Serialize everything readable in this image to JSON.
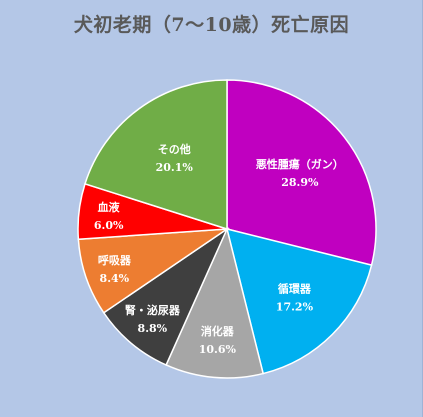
{
  "chart_data": {
    "type": "pie",
    "title": "犬初老期（7～10歳）死亡原因",
    "slices": [
      {
        "label": "悪性腫瘍（ガン）",
        "value": 28.9,
        "value_label": "28.9%",
        "color": "#c000c0"
      },
      {
        "label": "循環器",
        "value": 17.2,
        "value_label": "17.2%",
        "color": "#00b0f0"
      },
      {
        "label": "消化器",
        "value": 10.6,
        "value_label": "10.6%",
        "color": "#a6a6a6"
      },
      {
        "label": "腎・泌尿器",
        "value": 8.8,
        "value_label": "8.8%",
        "color": "#3f3f3f"
      },
      {
        "label": "呼吸器",
        "value": 8.4,
        "value_label": "8.4%",
        "color": "#ed7d31"
      },
      {
        "label": "血液",
        "value": 6.0,
        "value_label": "6.0%",
        "color": "#ff0000"
      },
      {
        "label": "その他",
        "value": 20.1,
        "value_label": "20.1%",
        "color": "#70ad47"
      }
    ],
    "start": "12 o'clock",
    "direction": "clockwise",
    "slice_border_color": "#ffffff",
    "legend": "none",
    "background_color": "#b4c7e7"
  }
}
